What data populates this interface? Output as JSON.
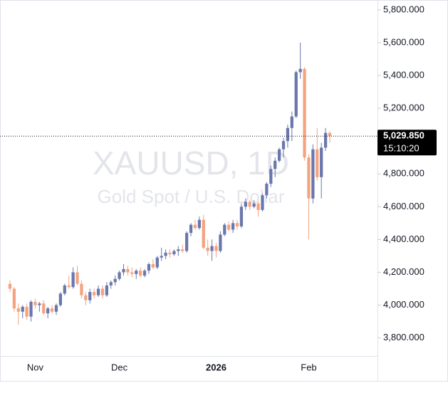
{
  "chart_data": {
    "type": "candlestick",
    "watermark": {
      "title": "XAUUSD, 1D",
      "subtitle": "Gold Spot / U.S. Dollar"
    },
    "categories": [
      null,
      null,
      null,
      null,
      null,
      null,
      "Nov",
      null,
      null,
      null,
      null,
      null,
      null,
      null,
      null,
      null,
      null,
      null,
      null,
      null,
      null,
      null,
      null,
      null,
      null,
      null,
      "Dec",
      null,
      null,
      null,
      null,
      null,
      null,
      null,
      null,
      null,
      null,
      null,
      null,
      null,
      null,
      null,
      null,
      null,
      null,
      null,
      null,
      null,
      null,
      "2026",
      null,
      null,
      null,
      null,
      null,
      null,
      null,
      null,
      null,
      null,
      null,
      null,
      null,
      null,
      null,
      null,
      null,
      null,
      null,
      null,
      null,
      "Feb",
      null,
      null,
      null,
      null,
      null
    ],
    "open": [
      4130,
      4100,
      3980,
      3960,
      3990,
      3930,
      4020,
      4000,
      4010,
      3950,
      3980,
      3960,
      4000,
      4070,
      4120,
      4110,
      4200,
      4130,
      4060,
      4030,
      4080,
      4060,
      4100,
      4060,
      4120,
      4140,
      4160,
      4200,
      4220,
      4200,
      4190,
      4210,
      4180,
      4210,
      4250,
      4230,
      4290,
      4300,
      4320,
      4310,
      4330,
      4340,
      4330,
      4440,
      4490,
      4470,
      4520,
      4350,
      4330,
      4360,
      4330,
      4430,
      4490,
      4460,
      4500,
      4480,
      4600,
      4630,
      4600,
      4620,
      4580,
      4670,
      4740,
      4830,
      4880,
      4950,
      5000,
      5080,
      5150,
      5420,
      5440,
      4900,
      4650,
      4950,
      4780,
      4960,
      5050
    ],
    "high": [
      4150,
      4110,
      4010,
      4000,
      4010,
      4030,
      4040,
      4020,
      4030,
      3990,
      4000,
      4010,
      4080,
      4130,
      4180,
      4230,
      4240,
      4150,
      4080,
      4100,
      4100,
      4120,
      4120,
      4140,
      4150,
      4180,
      4210,
      4250,
      4240,
      4230,
      4220,
      4230,
      4220,
      4260,
      4280,
      4300,
      4350,
      4340,
      4340,
      4340,
      4360,
      4370,
      4450,
      4500,
      4520,
      4540,
      4550,
      4400,
      4400,
      4380,
      4450,
      4500,
      4510,
      4520,
      4520,
      4620,
      4650,
      4640,
      4640,
      4630,
      4680,
      4750,
      4850,
      4900,
      4960,
      5020,
      5100,
      5180,
      5430,
      5600,
      5450,
      4920,
      4980,
      5080,
      4990,
      5080,
      5060
    ],
    "low": [
      4080,
      3960,
      3880,
      3920,
      3910,
      3900,
      3980,
      3960,
      3940,
      3920,
      3950,
      3940,
      3990,
      4060,
      4100,
      4100,
      4120,
      4040,
      4000,
      4010,
      4040,
      4050,
      4040,
      4050,
      4100,
      4120,
      4150,
      4180,
      4180,
      4170,
      4160,
      4170,
      4170,
      4190,
      4220,
      4220,
      4270,
      4280,
      4290,
      4300,
      4300,
      4320,
      4320,
      4420,
      4460,
      4460,
      4340,
      4300,
      4270,
      4290,
      4320,
      4420,
      4450,
      4440,
      4460,
      4470,
      4580,
      4580,
      4590,
      4540,
      4570,
      4650,
      4720,
      4780,
      4870,
      4900,
      4960,
      5000,
      5140,
      5380,
      4880,
      4400,
      4620,
      4760,
      4650,
      4940,
      4990
    ],
    "close": [
      4100,
      3980,
      3960,
      3990,
      3930,
      4020,
      4000,
      4010,
      3950,
      3980,
      3960,
      4000,
      4070,
      4120,
      4110,
      4200,
      4130,
      4060,
      4030,
      4080,
      4060,
      4100,
      4060,
      4120,
      4140,
      4160,
      4200,
      4220,
      4200,
      4190,
      4210,
      4180,
      4210,
      4250,
      4230,
      4290,
      4300,
      4320,
      4310,
      4330,
      4340,
      4330,
      4440,
      4490,
      4470,
      4520,
      4350,
      4330,
      4360,
      4330,
      4430,
      4490,
      4460,
      4500,
      4480,
      4600,
      4630,
      4600,
      4620,
      4580,
      4670,
      4740,
      4830,
      4880,
      4950,
      5000,
      5080,
      5150,
      5420,
      5440,
      4900,
      4650,
      4950,
      4780,
      4960,
      5050,
      5029.85
    ],
    "up_color": "#6a77ad",
    "down_color": "#f5a27f",
    "last_price": {
      "value": 5029.85,
      "label": "5,029.850"
    },
    "countdown": "15:10:20",
    "ylim": [
      3690,
      5860
    ],
    "yticks": [
      {
        "value": 3800,
        "label": "3,800.000"
      },
      {
        "value": 4000,
        "label": "4,000.000"
      },
      {
        "value": 4200,
        "label": "4,200.000"
      },
      {
        "value": 4400,
        "label": "4,400.000"
      },
      {
        "value": 4600,
        "label": "4,600.000"
      },
      {
        "value": 4800,
        "label": "4,800.000"
      },
      {
        "value": 5000,
        "label": "5,000.000"
      },
      {
        "value": 5200,
        "label": "5,200.000"
      },
      {
        "value": 5400,
        "label": "5,400.000"
      },
      {
        "value": 5600,
        "label": "5,600.000"
      },
      {
        "value": 5800,
        "label": "5,800.000"
      }
    ]
  }
}
